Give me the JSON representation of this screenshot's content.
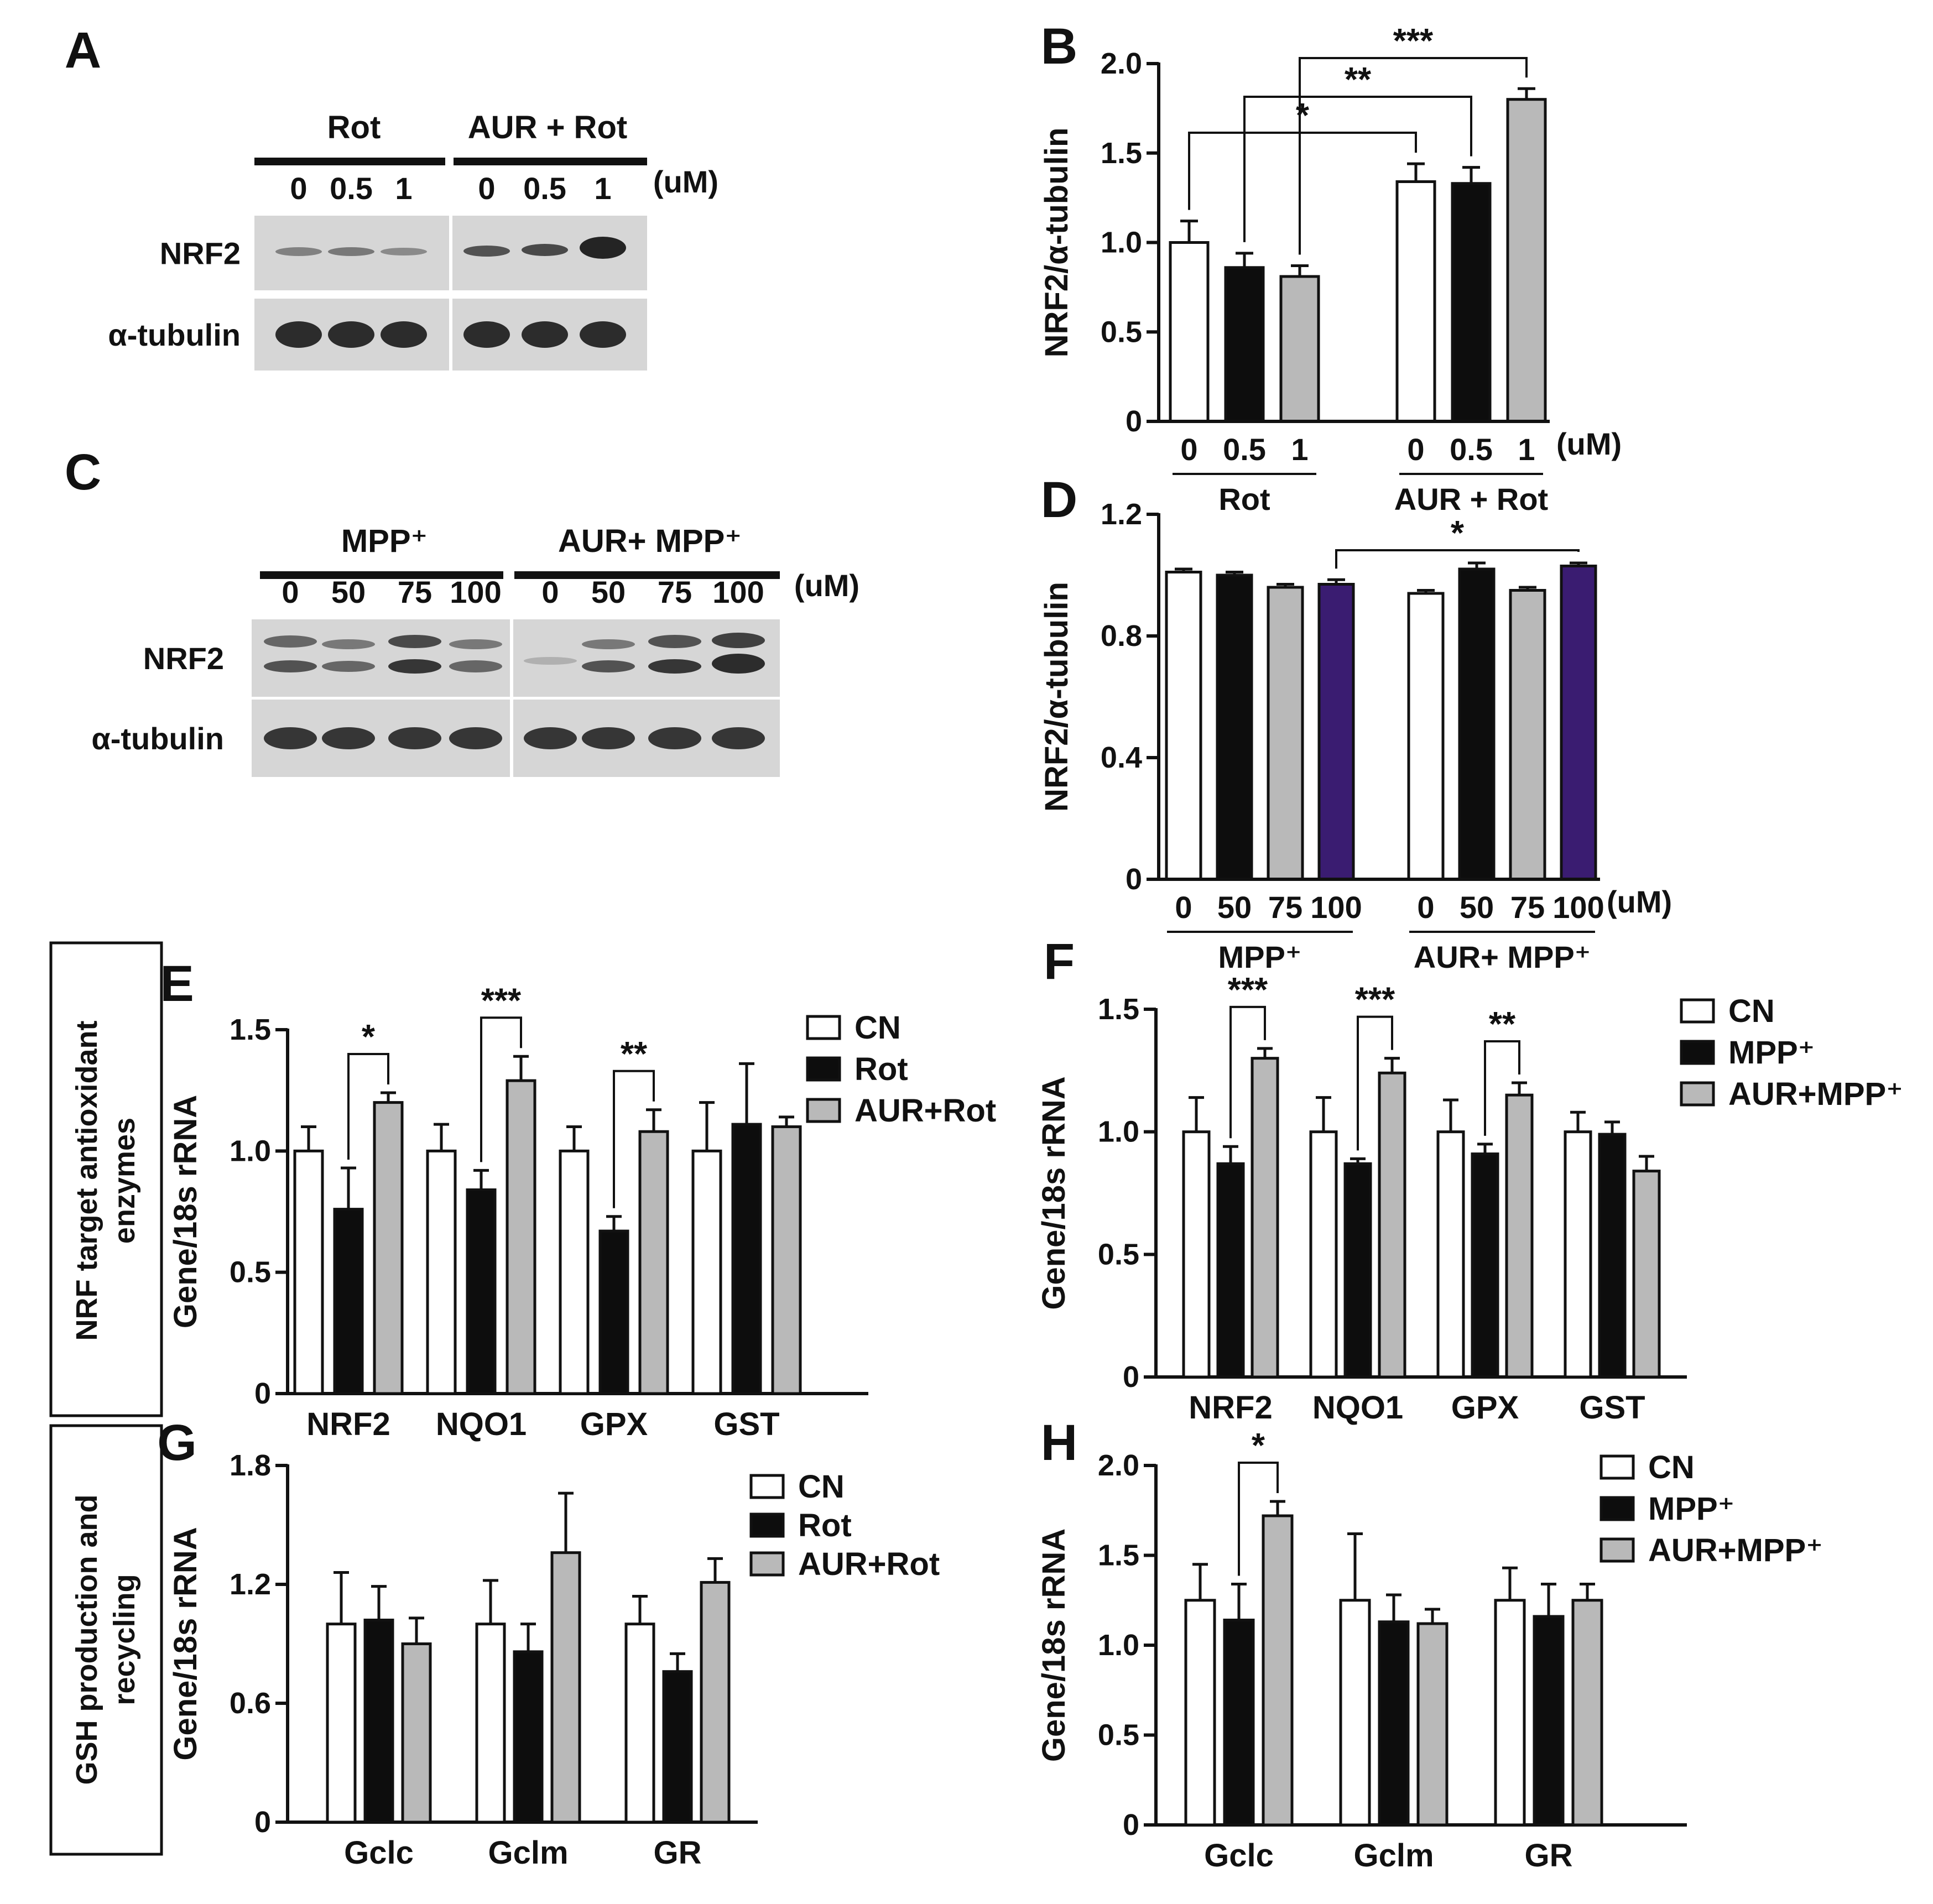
{
  "panel_letters": {
    "A": "A",
    "B": "B",
    "C": "C",
    "D": "D",
    "E": "E",
    "F": "F",
    "G": "G",
    "H": "H"
  },
  "unit": "(uM)",
  "side_labels": {
    "nrf": [
      "NRF target antioxidant",
      "enzymes"
    ],
    "gsh": [
      "GSH production and",
      "recycling"
    ]
  },
  "blot_a": {
    "group_labels": [
      "Rot",
      "AUR + Rot"
    ],
    "doses": [
      "0",
      "0.5",
      "1",
      "0",
      "0.5",
      "1"
    ],
    "row_labels": [
      "NRF2",
      "α-tubulin"
    ]
  },
  "blot_c": {
    "group_labels": [
      "MPP⁺",
      "AUR+ MPP⁺"
    ],
    "doses": [
      "0",
      "50",
      "75",
      "100",
      "0",
      "50",
      "75",
      "100"
    ],
    "row_labels": [
      "NRF2",
      "α-tubulin"
    ]
  },
  "colors": {
    "white": "#ffffff",
    "black": "#0d0d0d",
    "gray": "#b9b9b9",
    "purple": "#3a1c71"
  },
  "chart_data": [
    {
      "panel": "B",
      "type": "bar",
      "ylabel": "NRF2/α-tubulin",
      "ylim": [
        0,
        2.0
      ],
      "yticks": [
        "0",
        "0.5",
        "1.0",
        "1.5",
        "2.0"
      ],
      "categories": [
        "0",
        "0.5",
        "1",
        "0",
        "0.5",
        "1"
      ],
      "values": [
        1.0,
        0.86,
        0.81,
        1.34,
        1.33,
        1.8
      ],
      "errors": [
        0.12,
        0.08,
        0.06,
        0.1,
        0.09,
        0.06
      ],
      "colors": [
        "white",
        "black",
        "gray",
        "white",
        "black",
        "gray"
      ],
      "groups": [
        "Rot",
        "AUR + Rot"
      ],
      "unit": "(uM)",
      "significance": [
        {
          "from": 0,
          "to": 3,
          "label": "*"
        },
        {
          "from": 1,
          "to": 4,
          "label": "**"
        },
        {
          "from": 2,
          "to": 5,
          "label": "***"
        }
      ]
    },
    {
      "panel": "D",
      "type": "bar",
      "ylabel": "NRF2/α-tubulin",
      "ylim": [
        0,
        1.2
      ],
      "yticks": [
        "0",
        "0.4",
        "0.8",
        "1.2"
      ],
      "categories": [
        "0",
        "50",
        "75",
        "100",
        "0",
        "50",
        "75",
        "100"
      ],
      "values": [
        1.01,
        1.0,
        0.96,
        0.97,
        0.94,
        1.02,
        0.95,
        1.03
      ],
      "errors": [
        0.01,
        0.01,
        0.01,
        0.015,
        0.01,
        0.02,
        0.01,
        0.01
      ],
      "colors": [
        "white",
        "black",
        "gray",
        "purple",
        "white",
        "black",
        "gray",
        "purple"
      ],
      "groups": [
        "MPP⁺",
        "AUR+ MPP⁺"
      ],
      "unit": "(uM)",
      "significance": [
        {
          "from": 3,
          "to": 7,
          "label": "*"
        }
      ]
    },
    {
      "panel": "E",
      "type": "bar",
      "ylabel": "Gene/18s rRNA",
      "ylim": [
        0,
        1.5
      ],
      "yticks": [
        "0",
        "0.5",
        "1.0",
        "1.5"
      ],
      "categories": [
        "NRF2",
        "NQO1",
        "GPX",
        "GST"
      ],
      "series": [
        {
          "name": "CN",
          "values": [
            1.0,
            1.0,
            1.0,
            1.0
          ],
          "errors": [
            0.1,
            0.11,
            0.1,
            0.2
          ]
        },
        {
          "name": "Rot",
          "values": [
            0.76,
            0.84,
            0.67,
            1.11
          ],
          "errors": [
            0.17,
            0.08,
            0.06,
            0.25
          ]
        },
        {
          "name": "AUR+Rot",
          "values": [
            1.2,
            1.29,
            1.08,
            1.1
          ],
          "errors": [
            0.04,
            0.1,
            0.09,
            0.04
          ]
        }
      ],
      "significance": [
        {
          "category": 0,
          "label": "*"
        },
        {
          "category": 1,
          "label": "***"
        },
        {
          "category": 2,
          "label": "**"
        }
      ]
    },
    {
      "panel": "F",
      "type": "bar",
      "ylabel": "Gene/18s rRNA",
      "ylim": [
        0,
        1.5
      ],
      "yticks": [
        "0",
        "0.5",
        "1.0",
        "1.5"
      ],
      "categories": [
        "NRF2",
        "NQO1",
        "GPX",
        "GST"
      ],
      "series": [
        {
          "name": "CN",
          "values": [
            1.0,
            1.0,
            1.0,
            1.0
          ],
          "errors": [
            0.14,
            0.14,
            0.13,
            0.08
          ]
        },
        {
          "name": "MPP⁺",
          "values": [
            0.87,
            0.87,
            0.91,
            0.99
          ],
          "errors": [
            0.07,
            0.02,
            0.04,
            0.05
          ]
        },
        {
          "name": "AUR+MPP⁺",
          "values": [
            1.3,
            1.24,
            1.15,
            0.84
          ],
          "errors": [
            0.04,
            0.06,
            0.05,
            0.06
          ]
        }
      ],
      "significance": [
        {
          "category": 0,
          "label": "***"
        },
        {
          "category": 1,
          "label": "***"
        },
        {
          "category": 2,
          "label": "**"
        }
      ]
    },
    {
      "panel": "G",
      "type": "bar",
      "ylabel": "Gene/18s rRNA",
      "ylim": [
        0,
        1.8
      ],
      "yticks": [
        "0",
        "0.6",
        "1.2",
        "1.8"
      ],
      "categories": [
        "Gclc",
        "Gclm",
        "GR"
      ],
      "series": [
        {
          "name": "CN",
          "values": [
            1.0,
            1.0,
            1.0
          ],
          "errors": [
            0.26,
            0.22,
            0.14
          ]
        },
        {
          "name": "Rot",
          "values": [
            1.02,
            0.86,
            0.76
          ],
          "errors": [
            0.17,
            0.14,
            0.09
          ]
        },
        {
          "name": "AUR+Rot",
          "values": [
            0.9,
            1.36,
            1.21
          ],
          "errors": [
            0.13,
            0.3,
            0.12
          ]
        }
      ],
      "significance": []
    },
    {
      "panel": "H",
      "type": "bar",
      "ylabel": "Gene/18s rRNA",
      "ylim": [
        0,
        2.0
      ],
      "yticks": [
        "0",
        "0.5",
        "1.0",
        "1.5",
        "2.0"
      ],
      "categories": [
        "Gclc",
        "Gclm",
        "GR"
      ],
      "series": [
        {
          "name": "CN",
          "values": [
            1.25,
            1.25,
            1.25
          ],
          "errors": [
            0.2,
            0.37,
            0.18
          ]
        },
        {
          "name": "MPP⁺",
          "values": [
            1.14,
            1.13,
            1.16
          ],
          "errors": [
            0.2,
            0.15,
            0.18
          ]
        },
        {
          "name": "AUR+MPP⁺",
          "values": [
            1.72,
            1.12,
            1.25
          ],
          "errors": [
            0.08,
            0.08,
            0.09
          ]
        }
      ],
      "significance": [
        {
          "category": 0,
          "label": "*"
        }
      ]
    }
  ]
}
